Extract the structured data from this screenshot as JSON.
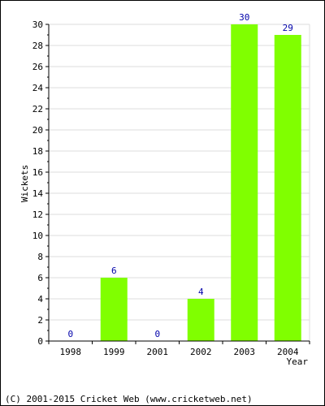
{
  "chart_data": {
    "type": "bar",
    "categories": [
      "1998",
      "1999",
      "2001",
      "2002",
      "2003",
      "2004"
    ],
    "values": [
      0,
      6,
      0,
      4,
      30,
      29
    ],
    "title": "",
    "xlabel": "Year",
    "ylabel": "Wickets",
    "ylim": [
      0,
      30
    ],
    "yticks": [
      0,
      2,
      4,
      6,
      8,
      10,
      12,
      14,
      16,
      18,
      20,
      22,
      24,
      26,
      28,
      30
    ],
    "grid": true,
    "bar_color": "#80ff00",
    "data_label_color": "#0000aa"
  },
  "footer": {
    "copyright": "(C) 2001-2015 Cricket Web (www.cricketweb.net)"
  }
}
